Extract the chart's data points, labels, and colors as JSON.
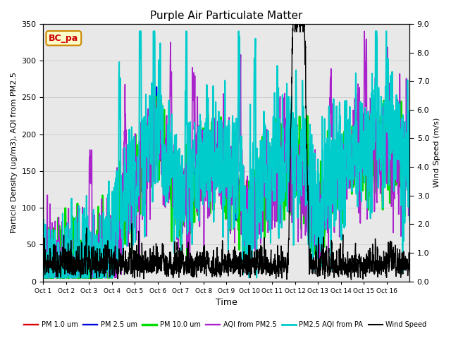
{
  "title": "Purple Air Particulate Matter",
  "xlabel": "Time",
  "ylabel_left": "Particle Density (ug/m3), AQI from PM2.5",
  "ylabel_right": "Wind Speed (m/s)",
  "ylim_left": [
    0,
    350
  ],
  "ylim_right": [
    0.0,
    9.0
  ],
  "yticks_left": [
    0,
    50,
    100,
    150,
    200,
    250,
    300,
    350
  ],
  "yticks_right": [
    0.0,
    1.0,
    2.0,
    3.0,
    4.0,
    5.0,
    6.0,
    7.0,
    8.0,
    9.0
  ],
  "xtick_labels": [
    "Oct 1",
    "Oct 2",
    "Oct 3",
    "Oct 4",
    "Oct 5",
    "Oct 6",
    "Oct 7",
    "Oct 8",
    "Oct 9",
    "Oct 9",
    "Oct 10",
    "Oct 11",
    "Oct 12",
    "Oct 13",
    "Oct 14",
    "Oct 15",
    "Oct 16"
  ],
  "annotation_text": "BC_pa",
  "annotation_box_facecolor": "#ffffcc",
  "annotation_box_edgecolor": "#cc8800",
  "annotation_text_color": "#cc0000",
  "grid_color": "#d0d0d0",
  "bg_color": "#e8e8e8",
  "legend_entries": [
    {
      "label": "PM 1.0 um",
      "color": "#dd0000",
      "lw": 1.2
    },
    {
      "label": "PM 2.5 um",
      "color": "#0000dd",
      "lw": 1.2
    },
    {
      "label": "PM 10.0 um",
      "color": "#00dd00",
      "lw": 2.0
    },
    {
      "label": "AQI from PM2.5",
      "color": "#aa22cc",
      "lw": 1.2
    },
    {
      "label": "PM2.5 AQI from PA",
      "color": "#00cccc",
      "lw": 1.5
    },
    {
      "label": "Wind Speed",
      "color": "#000000",
      "lw": 1.0
    }
  ]
}
